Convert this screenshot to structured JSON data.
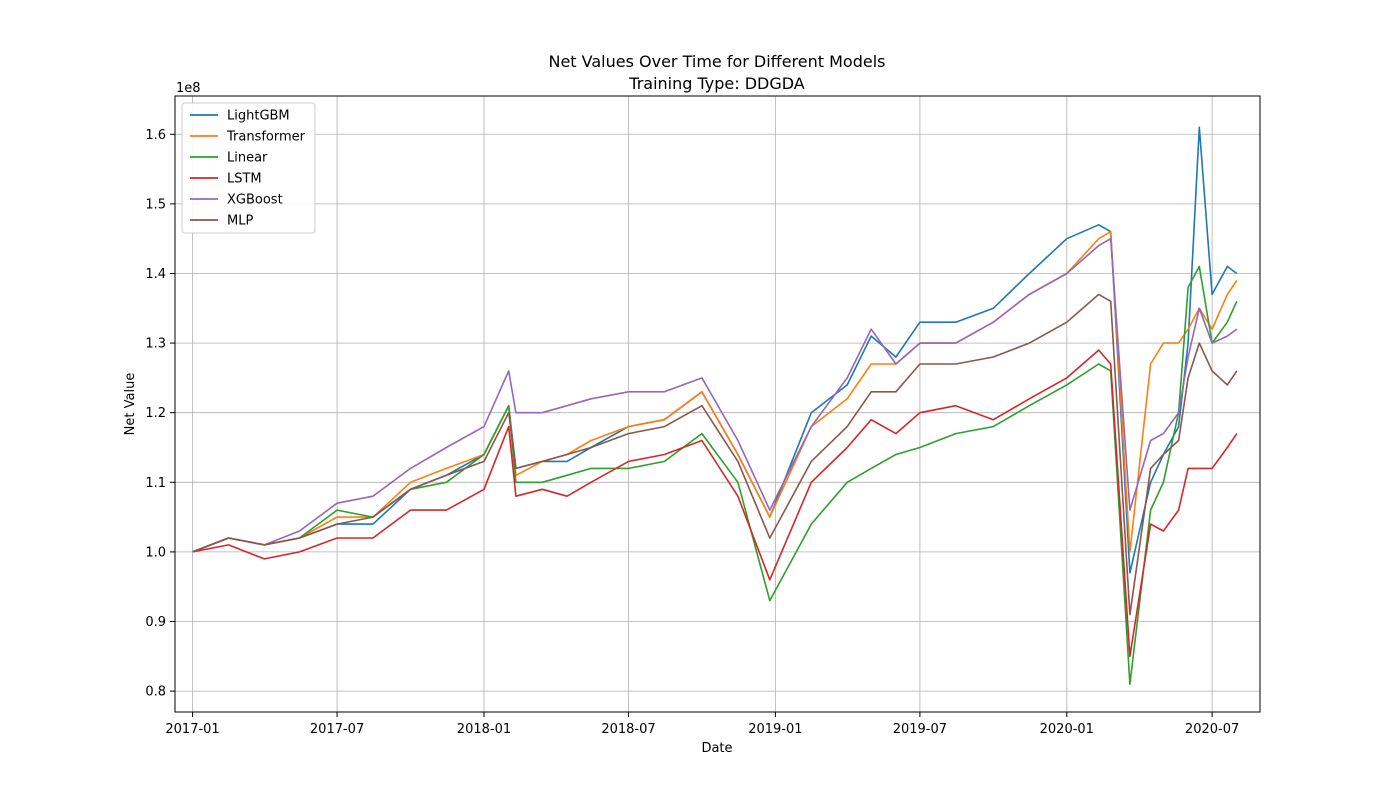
{
  "chart_data": {
    "type": "line",
    "title": "Net Values Over Time for Different Models",
    "subtitle": "Training Type: DDGDA",
    "xlabel": "Date",
    "ylabel": "Net Value",
    "y_offset_text": "1e8",
    "y_scale_factor": 100000000,
    "xlim": [
      "2016-12-10",
      "2020-08-30"
    ],
    "ylim": [
      0.77,
      1.655
    ],
    "x_ticks": [
      {
        "date": "2017-01-01",
        "label": "2017-01"
      },
      {
        "date": "2017-07-01",
        "label": "2017-07"
      },
      {
        "date": "2018-01-01",
        "label": "2018-01"
      },
      {
        "date": "2018-07-01",
        "label": "2018-07"
      },
      {
        "date": "2019-01-01",
        "label": "2019-01"
      },
      {
        "date": "2019-07-01",
        "label": "2019-07"
      },
      {
        "date": "2020-01-01",
        "label": "2020-01"
      },
      {
        "date": "2020-07-01",
        "label": "2020-07"
      }
    ],
    "y_ticks": [
      {
        "value": 0.8,
        "label": "0.8"
      },
      {
        "value": 0.9,
        "label": "0.9"
      },
      {
        "value": 1.0,
        "label": "1.0"
      },
      {
        "value": 1.1,
        "label": "1.1"
      },
      {
        "value": 1.2,
        "label": "1.2"
      },
      {
        "value": 1.3,
        "label": "1.3"
      },
      {
        "value": 1.4,
        "label": "1.4"
      },
      {
        "value": 1.5,
        "label": "1.5"
      },
      {
        "value": 1.6,
        "label": "1.6"
      }
    ],
    "grid": true,
    "legend_position": "upper-left",
    "x": [
      "2017-01-01",
      "2017-02-15",
      "2017-04-01",
      "2017-05-15",
      "2017-07-01",
      "2017-08-15",
      "2017-10-01",
      "2017-11-15",
      "2018-01-01",
      "2018-02-01",
      "2018-02-10",
      "2018-03-15",
      "2018-04-15",
      "2018-05-15",
      "2018-07-01",
      "2018-08-15",
      "2018-10-01",
      "2018-11-15",
      "2018-12-25",
      "2019-02-15",
      "2019-04-01",
      "2019-05-01",
      "2019-06-01",
      "2019-07-01",
      "2019-08-15",
      "2019-10-01",
      "2019-11-15",
      "2020-01-01",
      "2020-02-10",
      "2020-02-25",
      "2020-03-20",
      "2020-04-15",
      "2020-05-01",
      "2020-05-20",
      "2020-06-01",
      "2020-06-15",
      "2020-07-01",
      "2020-07-20",
      "2020-08-01"
    ],
    "series": [
      {
        "name": "LightGBM",
        "color": "#1f77b4",
        "values": [
          1.0,
          1.02,
          1.01,
          1.02,
          1.04,
          1.04,
          1.09,
          1.11,
          1.14,
          1.21,
          1.12,
          1.13,
          1.13,
          1.15,
          1.18,
          1.19,
          1.23,
          1.14,
          1.05,
          1.2,
          1.24,
          1.31,
          1.28,
          1.33,
          1.33,
          1.35,
          1.4,
          1.45,
          1.47,
          1.46,
          0.97,
          1.1,
          1.14,
          1.18,
          1.3,
          1.61,
          1.37,
          1.41,
          1.4
        ]
      },
      {
        "name": "Transformer",
        "color": "#ff7f0e",
        "values": [
          1.0,
          1.02,
          1.01,
          1.02,
          1.05,
          1.05,
          1.1,
          1.12,
          1.14,
          1.21,
          1.11,
          1.13,
          1.14,
          1.16,
          1.18,
          1.19,
          1.23,
          1.14,
          1.05,
          1.18,
          1.22,
          1.27,
          1.27,
          1.3,
          1.3,
          1.33,
          1.37,
          1.4,
          1.45,
          1.46,
          1.0,
          1.27,
          1.3,
          1.3,
          1.32,
          1.35,
          1.32,
          1.37,
          1.39
        ]
      },
      {
        "name": "Linear",
        "color": "#2ca02c",
        "values": [
          1.0,
          1.02,
          1.01,
          1.02,
          1.06,
          1.05,
          1.09,
          1.1,
          1.14,
          1.21,
          1.1,
          1.1,
          1.11,
          1.12,
          1.12,
          1.13,
          1.17,
          1.1,
          0.93,
          1.04,
          1.1,
          1.12,
          1.14,
          1.15,
          1.17,
          1.18,
          1.21,
          1.24,
          1.27,
          1.26,
          0.81,
          1.06,
          1.1,
          1.2,
          1.38,
          1.41,
          1.3,
          1.33,
          1.36
        ]
      },
      {
        "name": "LSTM",
        "color": "#d62728",
        "values": [
          1.0,
          1.01,
          0.99,
          1.0,
          1.02,
          1.02,
          1.06,
          1.06,
          1.09,
          1.18,
          1.08,
          1.09,
          1.08,
          1.1,
          1.13,
          1.14,
          1.16,
          1.08,
          0.96,
          1.1,
          1.15,
          1.19,
          1.17,
          1.2,
          1.21,
          1.19,
          1.22,
          1.25,
          1.29,
          1.27,
          0.85,
          1.04,
          1.03,
          1.06,
          1.12,
          1.12,
          1.12,
          1.15,
          1.17
        ]
      },
      {
        "name": "XGBoost",
        "color": "#9467bd",
        "values": [
          1.0,
          1.02,
          1.01,
          1.03,
          1.07,
          1.08,
          1.12,
          1.15,
          1.18,
          1.26,
          1.2,
          1.2,
          1.21,
          1.22,
          1.23,
          1.23,
          1.25,
          1.16,
          1.06,
          1.18,
          1.25,
          1.32,
          1.27,
          1.3,
          1.3,
          1.33,
          1.37,
          1.4,
          1.44,
          1.45,
          1.06,
          1.16,
          1.17,
          1.2,
          1.28,
          1.35,
          1.3,
          1.31,
          1.32
        ]
      },
      {
        "name": "MLP",
        "color": "#8c564b",
        "values": [
          1.0,
          1.02,
          1.01,
          1.02,
          1.04,
          1.05,
          1.09,
          1.11,
          1.13,
          1.2,
          1.12,
          1.13,
          1.14,
          1.15,
          1.17,
          1.18,
          1.21,
          1.13,
          1.02,
          1.13,
          1.18,
          1.23,
          1.23,
          1.27,
          1.27,
          1.28,
          1.3,
          1.33,
          1.37,
          1.36,
          0.91,
          1.12,
          1.14,
          1.16,
          1.25,
          1.3,
          1.26,
          1.24,
          1.26
        ]
      }
    ]
  }
}
